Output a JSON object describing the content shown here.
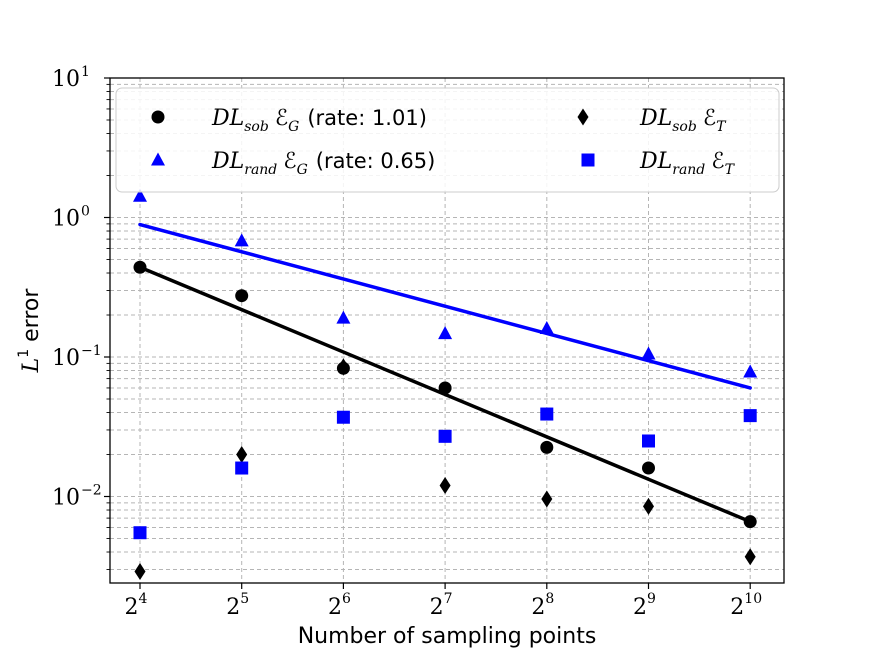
{
  "chart_data": {
    "type": "scatter",
    "y_scale": "log",
    "x_scale": "log2",
    "grid": true,
    "legend_position": "top",
    "xlabel": "Number of sampling points",
    "ylabel_main": "L",
    "ylabel_sup": "1",
    "ylabel_rest": " error",
    "x": [
      16,
      32,
      64,
      128,
      256,
      512,
      1024
    ],
    "x_tick_base": "2",
    "x_tick_exponents": [
      "4",
      "5",
      "6",
      "7",
      "8",
      "9",
      "10"
    ],
    "y_tick_base": "10",
    "y_tick_exponents": [
      "1",
      "0",
      "−1",
      "−2"
    ],
    "y_tick_values": [
      10,
      1,
      0.1,
      0.01
    ],
    "ylim": [
      0.0025,
      10
    ],
    "series": [
      {
        "name_main": "DL",
        "name_sub": "sob",
        "name_err": "ℰ",
        "name_err_sub": "G",
        "name_extra": "(rate:  1.01)",
        "marker": "circle",
        "color": "#000000",
        "values": [
          0.44,
          0.275,
          0.083,
          0.06,
          0.0225,
          0.016,
          0.0066
        ],
        "fit": {
          "rate": 1.01,
          "start": 0.44,
          "end": 0.0066
        }
      },
      {
        "name_main": "DL",
        "name_sub": "rand",
        "name_err": "ℰ",
        "name_err_sub": "G",
        "name_extra": "(rate:  0.65)",
        "marker": "triangle",
        "color": "#0000ff",
        "values": [
          1.42,
          0.68,
          0.19,
          0.147,
          0.16,
          0.105,
          0.078
        ],
        "fit": {
          "rate": 0.65,
          "start": 0.89,
          "end": 0.06
        }
      },
      {
        "name_main": "DL",
        "name_sub": "sob",
        "name_err": "ℰ",
        "name_err_sub": "T",
        "name_extra": "",
        "marker": "diamond",
        "color": "#000000",
        "values": [
          0.0029,
          0.02,
          0.085,
          0.012,
          0.0096,
          0.0085,
          0.0037
        ]
      },
      {
        "name_main": "DL",
        "name_sub": "rand",
        "name_err": "ℰ",
        "name_err_sub": "T",
        "name_extra": "",
        "marker": "square",
        "color": "#0000ff",
        "values": [
          0.0055,
          0.016,
          0.037,
          0.027,
          0.039,
          0.025,
          0.038
        ]
      }
    ]
  }
}
